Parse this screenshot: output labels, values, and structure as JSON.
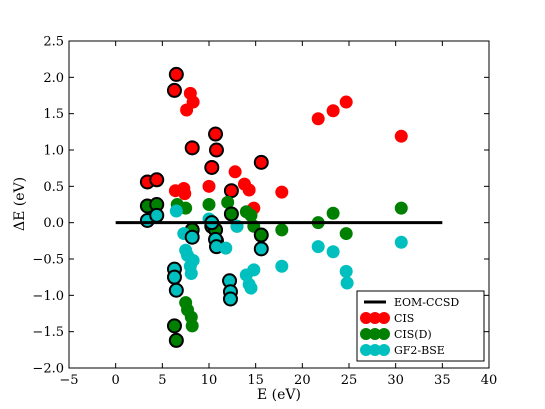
{
  "chart_data": {
    "type": "scatter",
    "xlabel": "E (eV)",
    "ylabel": "ΔE (eV)",
    "xlim": [
      -5,
      40
    ],
    "ylim": [
      -2.0,
      2.5
    ],
    "xticks": [
      -5,
      0,
      5,
      10,
      15,
      20,
      25,
      30,
      35,
      40
    ],
    "yticks": [
      -2.0,
      -1.5,
      -1.0,
      -0.5,
      0.0,
      0.5,
      1.0,
      1.5,
      2.0,
      2.5
    ],
    "xtick_labels": [
      "−5",
      "0",
      "5",
      "10",
      "15",
      "20",
      "25",
      "30",
      "35",
      "40"
    ],
    "ytick_labels": [
      "−2.0",
      "−1.5",
      "−1.0",
      "−0.5",
      "0.0",
      "0.5",
      "1.0",
      "1.5",
      "2.0",
      "2.5"
    ],
    "grid": false,
    "legend_position": "lower-right",
    "reference_line": {
      "name": "EOM-CCSD",
      "x": [
        0,
        35
      ],
      "y": [
        0,
        0
      ],
      "color": "#000000"
    },
    "series": [
      {
        "name": "CIS",
        "color": "#ff0000",
        "points": [
          {
            "x": 6.3,
            "y": 1.82,
            "outlined": true
          },
          {
            "x": 6.5,
            "y": 2.04,
            "outlined": true
          },
          {
            "x": 6.4,
            "y": 0.44,
            "outlined": false
          },
          {
            "x": 7.3,
            "y": 0.47,
            "outlined": false
          },
          {
            "x": 7.4,
            "y": 0.4,
            "outlined": false
          },
          {
            "x": 7.6,
            "y": 1.55,
            "outlined": false
          },
          {
            "x": 8.0,
            "y": 1.78,
            "outlined": false
          },
          {
            "x": 8.3,
            "y": 1.66,
            "outlined": false
          },
          {
            "x": 8.2,
            "y": 1.03,
            "outlined": true
          },
          {
            "x": 10.0,
            "y": 0.5,
            "outlined": false
          },
          {
            "x": 10.3,
            "y": 0.76,
            "outlined": true
          },
          {
            "x": 10.7,
            "y": 1.22,
            "outlined": true
          },
          {
            "x": 10.8,
            "y": 1.0,
            "outlined": true
          },
          {
            "x": 12.4,
            "y": 0.44,
            "outlined": true
          },
          {
            "x": 12.8,
            "y": 0.7,
            "outlined": false
          },
          {
            "x": 13.8,
            "y": 0.53,
            "outlined": false
          },
          {
            "x": 14.3,
            "y": 0.45,
            "outlined": false
          },
          {
            "x": 14.8,
            "y": 0.2,
            "outlined": false
          },
          {
            "x": 15.6,
            "y": 0.83,
            "outlined": true
          },
          {
            "x": 17.8,
            "y": 0.42,
            "outlined": false
          },
          {
            "x": 21.7,
            "y": 1.43,
            "outlined": false
          },
          {
            "x": 23.3,
            "y": 1.54,
            "outlined": false
          },
          {
            "x": 24.7,
            "y": 1.66,
            "outlined": false
          },
          {
            "x": 30.6,
            "y": 1.19,
            "outlined": false
          },
          {
            "x": 3.4,
            "y": 0.56,
            "outlined": true
          },
          {
            "x": 4.4,
            "y": 0.59,
            "outlined": true
          }
        ]
      },
      {
        "name": "CIS(D)",
        "color": "#008000",
        "points": [
          {
            "x": 3.4,
            "y": 0.23,
            "outlined": true
          },
          {
            "x": 4.4,
            "y": 0.25,
            "outlined": true
          },
          {
            "x": 6.3,
            "y": -1.42,
            "outlined": true
          },
          {
            "x": 6.5,
            "y": -1.62,
            "outlined": true
          },
          {
            "x": 6.6,
            "y": 0.25,
            "outlined": false
          },
          {
            "x": 7.5,
            "y": 0.2,
            "outlined": false
          },
          {
            "x": 7.5,
            "y": -1.1,
            "outlined": false
          },
          {
            "x": 7.7,
            "y": -1.2,
            "outlined": false
          },
          {
            "x": 8.1,
            "y": -1.3,
            "outlined": false
          },
          {
            "x": 8.2,
            "y": -1.42,
            "outlined": false
          },
          {
            "x": 8.2,
            "y": -0.1,
            "outlined": true
          },
          {
            "x": 10.0,
            "y": 0.25,
            "outlined": false
          },
          {
            "x": 10.3,
            "y": -0.05,
            "outlined": true
          },
          {
            "x": 10.7,
            "y": -0.1,
            "outlined": true
          },
          {
            "x": 10.8,
            "y": -0.25,
            "outlined": true
          },
          {
            "x": 12.0,
            "y": 0.28,
            "outlined": false
          },
          {
            "x": 12.4,
            "y": 0.12,
            "outlined": true
          },
          {
            "x": 13.0,
            "y": -0.05,
            "outlined": false
          },
          {
            "x": 14.0,
            "y": 0.15,
            "outlined": false
          },
          {
            "x": 14.5,
            "y": 0.1,
            "outlined": false
          },
          {
            "x": 14.8,
            "y": -0.05,
            "outlined": false
          },
          {
            "x": 15.6,
            "y": -0.17,
            "outlined": true
          },
          {
            "x": 17.8,
            "y": -0.1,
            "outlined": false
          },
          {
            "x": 21.7,
            "y": 0.0,
            "outlined": false
          },
          {
            "x": 23.3,
            "y": 0.13,
            "outlined": false
          },
          {
            "x": 24.7,
            "y": -0.15,
            "outlined": false
          },
          {
            "x": 30.6,
            "y": 0.2,
            "outlined": false
          }
        ]
      },
      {
        "name": "GF2-BSE",
        "color": "#00bfbf",
        "points": [
          {
            "x": 3.4,
            "y": 0.03,
            "outlined": true
          },
          {
            "x": 4.4,
            "y": 0.1,
            "outlined": true
          },
          {
            "x": 6.3,
            "y": -0.64,
            "outlined": true
          },
          {
            "x": 6.3,
            "y": -0.75,
            "outlined": true
          },
          {
            "x": 6.5,
            "y": -0.93,
            "outlined": true
          },
          {
            "x": 6.5,
            "y": 0.16,
            "outlined": false
          },
          {
            "x": 7.3,
            "y": -0.15,
            "outlined": false
          },
          {
            "x": 7.5,
            "y": -0.38,
            "outlined": false
          },
          {
            "x": 7.7,
            "y": -0.45,
            "outlined": false
          },
          {
            "x": 8.0,
            "y": -0.6,
            "outlined": false
          },
          {
            "x": 8.1,
            "y": -0.7,
            "outlined": false
          },
          {
            "x": 8.3,
            "y": -0.52,
            "outlined": false
          },
          {
            "x": 8.2,
            "y": -0.2,
            "outlined": true
          },
          {
            "x": 10.0,
            "y": 0.05,
            "outlined": false
          },
          {
            "x": 10.3,
            "y": 0.0,
            "outlined": true
          },
          {
            "x": 10.7,
            "y": -0.23,
            "outlined": true
          },
          {
            "x": 10.8,
            "y": -0.33,
            "outlined": true
          },
          {
            "x": 11.8,
            "y": -0.35,
            "outlined": false
          },
          {
            "x": 12.2,
            "y": -0.8,
            "outlined": true
          },
          {
            "x": 12.3,
            "y": -0.95,
            "outlined": true
          },
          {
            "x": 12.3,
            "y": -1.05,
            "outlined": true
          },
          {
            "x": 13.0,
            "y": -0.05,
            "outlined": false
          },
          {
            "x": 14.0,
            "y": -0.72,
            "outlined": false
          },
          {
            "x": 14.3,
            "y": -0.85,
            "outlined": false
          },
          {
            "x": 14.5,
            "y": -0.9,
            "outlined": false
          },
          {
            "x": 14.8,
            "y": -0.65,
            "outlined": false
          },
          {
            "x": 15.6,
            "y": -0.36,
            "outlined": true
          },
          {
            "x": 17.8,
            "y": -0.6,
            "outlined": false
          },
          {
            "x": 21.7,
            "y": -0.33,
            "outlined": false
          },
          {
            "x": 23.3,
            "y": -0.4,
            "outlined": false
          },
          {
            "x": 24.7,
            "y": -0.67,
            "outlined": false
          },
          {
            "x": 24.8,
            "y": -0.83,
            "outlined": false
          },
          {
            "x": 30.6,
            "y": -0.27,
            "outlined": false
          }
        ]
      }
    ]
  }
}
